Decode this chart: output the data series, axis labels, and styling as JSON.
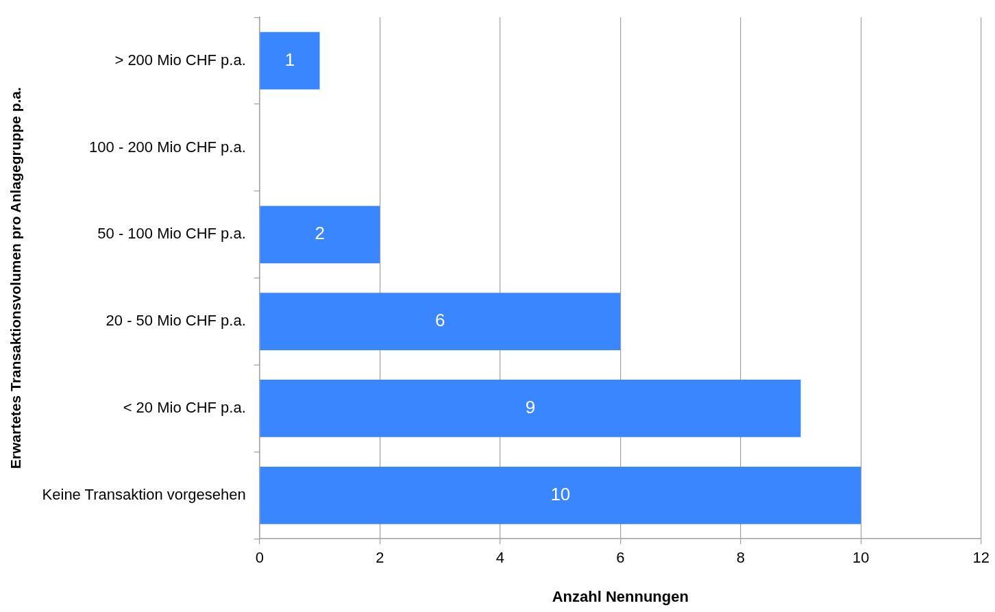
{
  "chart_data": {
    "type": "bar",
    "orientation": "horizontal",
    "categories": [
      "> 200 Mio CHF p.a.",
      "100 - 200 Mio CHF p.a.",
      "50 - 100 Mio CHF p.a.",
      "20 - 50 Mio CHF p.a.",
      "< 20 Mio CHF p.a.",
      "Keine Transaktion vorgesehen"
    ],
    "values": [
      1,
      0,
      2,
      6,
      9,
      10
    ],
    "value_labels": [
      "1",
      null,
      "2",
      "6",
      "9",
      "10"
    ],
    "color": "#3a86ff",
    "xlim": [
      0,
      12
    ],
    "xticks": [
      0,
      2,
      4,
      6,
      8,
      10,
      12
    ],
    "xlabel": "Anzahl Nennungen",
    "ylabel": "Erwartetes Transaktionsvolumen pro Anlagegruppe p.a.",
    "grid": "x",
    "legend": false
  }
}
